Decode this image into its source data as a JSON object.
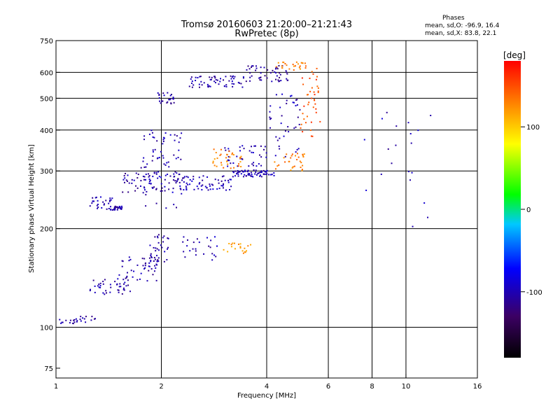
{
  "header": {
    "title": "Tromsø 20160603 21:20:00–21:21:43",
    "subtitle": "RwPretec (8p)",
    "phase_heading": "Phases",
    "phase_o": "mean, sd,O: -96.9, 16.4",
    "phase_x": "mean, sd,X:  83.8, 22.1"
  },
  "chart_data": {
    "type": "scatter",
    "title": "Tromsø 20160603 21:20:00–21:21:43",
    "subtitle": "RwPretec (8p)",
    "xlabel": "Frequency [MHz]",
    "ylabel": "Stationary phase Virtual Height [km]",
    "xscale": "log",
    "yscale": "log",
    "xlim": [
      1,
      16
    ],
    "ylim": [
      70,
      750
    ],
    "xticks": [
      1,
      2,
      4,
      6,
      8,
      10,
      16
    ],
    "xgrid": [
      2,
      4,
      6,
      8,
      10
    ],
    "yticks": [
      75,
      100,
      200,
      300,
      400,
      500,
      600,
      750
    ],
    "ygrid": [
      100,
      200,
      300,
      400,
      500,
      600
    ],
    "grid": true,
    "colorbar": {
      "label": "[deg]",
      "ticks": [
        100,
        0,
        -100
      ],
      "range": [
        -180,
        180
      ],
      "colormap": "rainbow"
    },
    "clusters": [
      {
        "phase": -105,
        "n": 12,
        "x": [
          1.0,
          1.15
        ],
        "y": [
          102,
          106
        ]
      },
      {
        "phase": -105,
        "n": 14,
        "x": [
          1.1,
          1.3
        ],
        "y": [
          103,
          110
        ]
      },
      {
        "phase": -105,
        "n": 40,
        "x": [
          1.25,
          1.65
        ],
        "y": [
          126,
          140
        ]
      },
      {
        "phase": -105,
        "n": 45,
        "x": [
          1.5,
          1.95
        ],
        "y": [
          138,
          165
        ]
      },
      {
        "phase": -105,
        "n": 35,
        "x": [
          1.85,
          2.1
        ],
        "y": [
          158,
          195
        ]
      },
      {
        "phase": -100,
        "n": 25,
        "x": [
          2.3,
          2.9
        ],
        "y": [
          160,
          190
        ]
      },
      {
        "phase": 120,
        "n": 20,
        "x": [
          3.0,
          3.6
        ],
        "y": [
          168,
          182
        ]
      },
      {
        "phase": -105,
        "n": 30,
        "x": [
          1.25,
          1.45
        ],
        "y": [
          228,
          250
        ]
      },
      {
        "phase": -105,
        "n": 25,
        "x": [
          1.45,
          1.55
        ],
        "y": [
          228,
          235
        ]
      },
      {
        "phase": -105,
        "n": 45,
        "x": [
          1.55,
          2.1
        ],
        "y": [
          258,
          300
        ]
      },
      {
        "phase": -100,
        "n": 90,
        "x": [
          1.75,
          2.3
        ],
        "y": [
          230,
          400
        ]
      },
      {
        "phase": -100,
        "n": 70,
        "x": [
          2.2,
          3.2
        ],
        "y": [
          262,
          290
        ]
      },
      {
        "phase": -100,
        "n": 70,
        "x": [
          3.2,
          4.2
        ],
        "y": [
          288,
          302
        ]
      },
      {
        "phase": -100,
        "n": 40,
        "x": [
          3.0,
          4.0
        ],
        "y": [
          310,
          360
        ]
      },
      {
        "phase": 130,
        "n": 35,
        "x": [
          2.8,
          3.4
        ],
        "y": [
          305,
          350
        ]
      },
      {
        "phase": 130,
        "n": 30,
        "x": [
          4.2,
          5.2
        ],
        "y": [
          300,
          340
        ]
      },
      {
        "phase": 150,
        "n": 40,
        "x": [
          5.0,
          5.7
        ],
        "y": [
          380,
          620
        ]
      },
      {
        "phase": -105,
        "n": 25,
        "x": [
          1.95,
          2.2
        ],
        "y": [
          480,
          520
        ]
      },
      {
        "phase": -105,
        "n": 60,
        "x": [
          2.4,
          3.5
        ],
        "y": [
          540,
          585
        ]
      },
      {
        "phase": -110,
        "n": 50,
        "x": [
          3.5,
          4.6
        ],
        "y": [
          560,
          630
        ]
      },
      {
        "phase": 130,
        "n": 25,
        "x": [
          4.2,
          5.2
        ],
        "y": [
          610,
          645
        ]
      },
      {
        "phase": -100,
        "n": 40,
        "x": [
          4.0,
          5.0
        ],
        "y": [
          320,
          520
        ]
      },
      {
        "phase": -100,
        "n": 20,
        "x": [
          7.5,
          12.0
        ],
        "y": [
          200,
          480
        ]
      }
    ]
  }
}
